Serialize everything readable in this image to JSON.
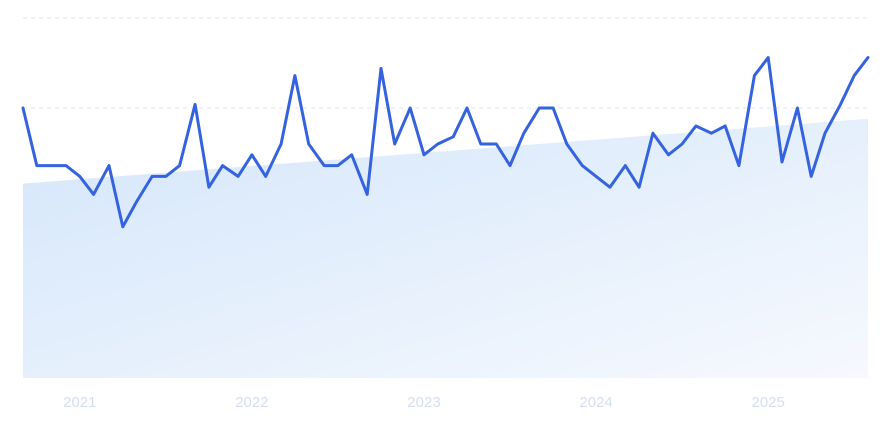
{
  "chart_data": {
    "type": "line",
    "title": "",
    "xlabel": "",
    "ylabel": "",
    "x_ticks": [
      "2021",
      "2022",
      "2023",
      "2024",
      "2025"
    ],
    "x_tick_values": [
      2021.0,
      2022.0,
      2023.0,
      2024.0,
      2025.0
    ],
    "xlim": [
      2020.67,
      2025.58
    ],
    "ylim": [
      0,
      100
    ],
    "grid": "horizontal-dashed",
    "trend": {
      "x": [
        2020.67,
        2025.58
      ],
      "y": [
        54,
        72
      ]
    },
    "series": [
      {
        "color": "#3563e0",
        "x": [
          2020.67,
          2020.75,
          2020.83,
          2020.92,
          2021.0,
          2021.08,
          2021.17,
          2021.25,
          2021.33,
          2021.42,
          2021.5,
          2021.58,
          2021.67,
          2021.75,
          2021.83,
          2021.92,
          2022.0,
          2022.08,
          2022.17,
          2022.25,
          2022.33,
          2022.42,
          2022.5,
          2022.58,
          2022.67,
          2022.75,
          2022.83,
          2022.92,
          2023.0,
          2023.08,
          2023.17,
          2023.25,
          2023.33,
          2023.42,
          2023.5,
          2023.58,
          2023.67,
          2023.75,
          2023.83,
          2023.92,
          2024.0,
          2024.08,
          2024.17,
          2024.25,
          2024.33,
          2024.42,
          2024.5,
          2024.58,
          2024.67,
          2024.75,
          2024.83,
          2024.92,
          2025.0,
          2025.08,
          2025.17,
          2025.25,
          2025.33,
          2025.42,
          2025.5,
          2025.58
        ],
        "y": [
          75,
          59,
          59,
          59,
          56,
          51,
          59,
          42,
          49,
          56,
          56,
          59,
          76,
          53,
          59,
          56,
          62,
          56,
          65,
          84,
          65,
          59,
          59,
          62,
          51,
          86,
          65,
          75,
          62,
          65,
          67,
          75,
          65,
          65,
          59,
          68,
          75,
          75,
          65,
          59,
          56,
          53,
          59,
          53,
          68,
          62,
          65,
          70,
          68,
          70,
          59,
          84,
          89,
          60,
          75,
          56,
          68,
          76,
          84,
          89
        ]
      }
    ]
  }
}
